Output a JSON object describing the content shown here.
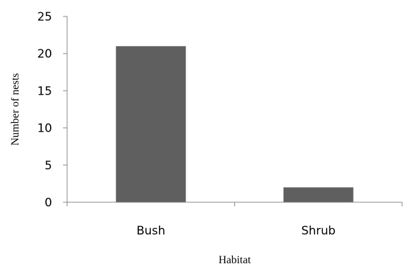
{
  "chart_data": {
    "type": "bar",
    "title": "",
    "categories": [
      "Bush",
      "Shrub"
    ],
    "values": [
      21,
      2
    ],
    "xlabel": "Habitat",
    "ylabel": "Number of nests",
    "ylim": [
      0,
      25
    ],
    "yticks": [
      "0",
      "5",
      "10",
      "15",
      "20",
      "25"
    ],
    "grid": false,
    "legend": "none",
    "colors": {
      "bar": "#5f5f5f",
      "axis": "#868686",
      "text": "#000000"
    }
  }
}
